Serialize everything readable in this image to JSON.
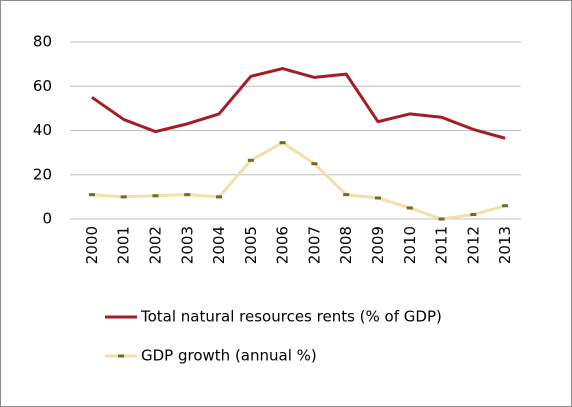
{
  "chart_data": {
    "type": "line",
    "categories": [
      "2000",
      "2001",
      "2002",
      "2003",
      "2004",
      "2005",
      "2006",
      "2007",
      "2008",
      "2009",
      "2010",
      "2011",
      "2012",
      "2013"
    ],
    "series": [
      {
        "name": "Total natural resources rents (% of GDP)",
        "color": "#a51d24",
        "values": [
          55,
          45,
          39.5,
          43,
          47.5,
          64.5,
          68,
          64,
          65.5,
          44,
          47.5,
          46,
          40.5,
          36.5
        ]
      },
      {
        "name": "GDP growth (annual %)",
        "color": "#f3dfa8",
        "marker_color": "#6b6b2a",
        "values": [
          11,
          10,
          10.5,
          11,
          10,
          26.5,
          34.5,
          25,
          11,
          9.5,
          5,
          0,
          2,
          6
        ]
      }
    ],
    "ylim": [
      0,
      80
    ],
    "yticks": [
      0,
      20,
      40,
      60,
      80
    ],
    "grid": true,
    "legend": "bottom"
  }
}
